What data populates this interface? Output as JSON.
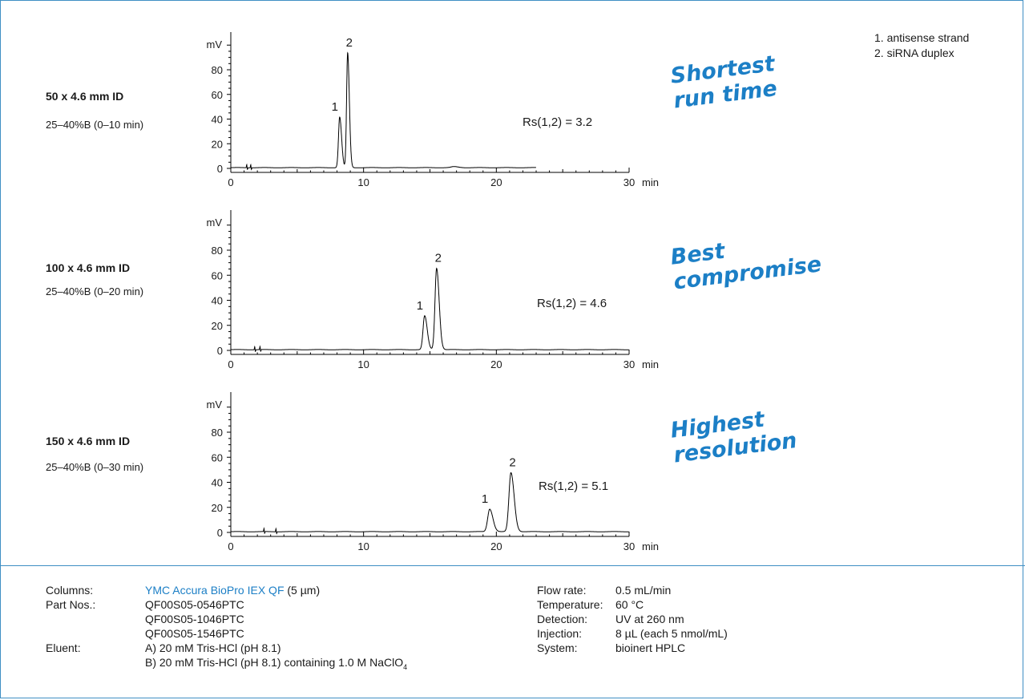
{
  "legend": [
    "1. antisense strand",
    "2. siRNA duplex"
  ],
  "panels": [
    {
      "column": "50 x 4.6 mm ID",
      "gradient": "25–40%B (0–10 min)",
      "tagline": [
        "Shortest",
        "run time"
      ],
      "rs": "Rs(1,2) = 3.2"
    },
    {
      "column": "100 x 4.6 mm ID",
      "gradient": "25–40%B (0–20 min)",
      "tagline": [
        "Best",
        "compromise"
      ],
      "rs": "Rs(1,2) = 4.6"
    },
    {
      "column": "150 x 4.6 mm ID",
      "gradient": "25–40%B (0–30 min)",
      "tagline": [
        "Highest",
        "resolution"
      ],
      "rs": "Rs(1,2) = 5.1"
    }
  ],
  "chart_data": [
    {
      "type": "line",
      "ylabel": "mV",
      "xlabel": "min",
      "xlim": [
        0,
        30
      ],
      "ylim": [
        0,
        100
      ],
      "xticks": [
        0,
        10,
        20,
        30
      ],
      "yticks": [
        0,
        20,
        40,
        60,
        80
      ],
      "run_end": 23,
      "peaks": [
        {
          "label": "1",
          "x": 8.2,
          "y": 41,
          "sigma": 0.09
        },
        {
          "label": "2",
          "x": 8.8,
          "y": 93,
          "sigma": 0.08
        },
        {
          "label": "",
          "x": 16.8,
          "y": 0.8,
          "sigma": 0.2
        }
      ],
      "blips": [
        1.2,
        1.5
      ]
    },
    {
      "type": "line",
      "ylabel": "mV",
      "xlabel": "min",
      "xlim": [
        0,
        30
      ],
      "ylim": [
        0,
        100
      ],
      "xticks": [
        0,
        10,
        20,
        30
      ],
      "yticks": [
        0,
        20,
        40,
        60,
        80
      ],
      "run_end": 30,
      "peaks": [
        {
          "label": "1",
          "x": 14.6,
          "y": 27,
          "sigma": 0.12
        },
        {
          "label": "2",
          "x": 15.5,
          "y": 65,
          "sigma": 0.12
        }
      ],
      "blips": [
        1.8,
        2.2
      ]
    },
    {
      "type": "line",
      "ylabel": "mV",
      "xlabel": "min",
      "xlim": [
        0,
        30
      ],
      "ylim": [
        0,
        100
      ],
      "xticks": [
        0,
        10,
        20,
        30
      ],
      "yticks": [
        0,
        20,
        40,
        60,
        80
      ],
      "run_end": 30,
      "peaks": [
        {
          "label": "1",
          "x": 19.5,
          "y": 18,
          "sigma": 0.15
        },
        {
          "label": "2",
          "x": 21.1,
          "y": 47,
          "sigma": 0.15
        }
      ],
      "blips": [
        2.5,
        3.4
      ]
    }
  ],
  "footer": {
    "left": [
      {
        "key": "Columns:",
        "value": "YMC Accura BioPro IEX QF",
        "value_suffix": " (5 µm)"
      },
      {
        "key": "Part Nos.:",
        "value": "QF00S05-0546PTC"
      },
      {
        "key": "",
        "value": "QF00S05-1046PTC"
      },
      {
        "key": "",
        "value": "QF00S05-1546PTC"
      },
      {
        "key": "Eluent:",
        "value": "A) 20 mM Tris-HCl (pH 8.1)"
      },
      {
        "key": "",
        "value": "B) 20 mM Tris-HCl (pH 8.1) containing 1.0 M NaClO",
        "sub": "4"
      }
    ],
    "right": [
      {
        "key": "Flow rate:",
        "value": "0.5 mL/min"
      },
      {
        "key": "Temperature:",
        "value": "60 °C"
      },
      {
        "key": "Detection:",
        "value": "UV at 260 nm"
      },
      {
        "key": "Injection:",
        "value": "8 µL (each 5 nmol/mL)"
      },
      {
        "key": "System:",
        "value": "bioinert HPLC"
      }
    ]
  }
}
